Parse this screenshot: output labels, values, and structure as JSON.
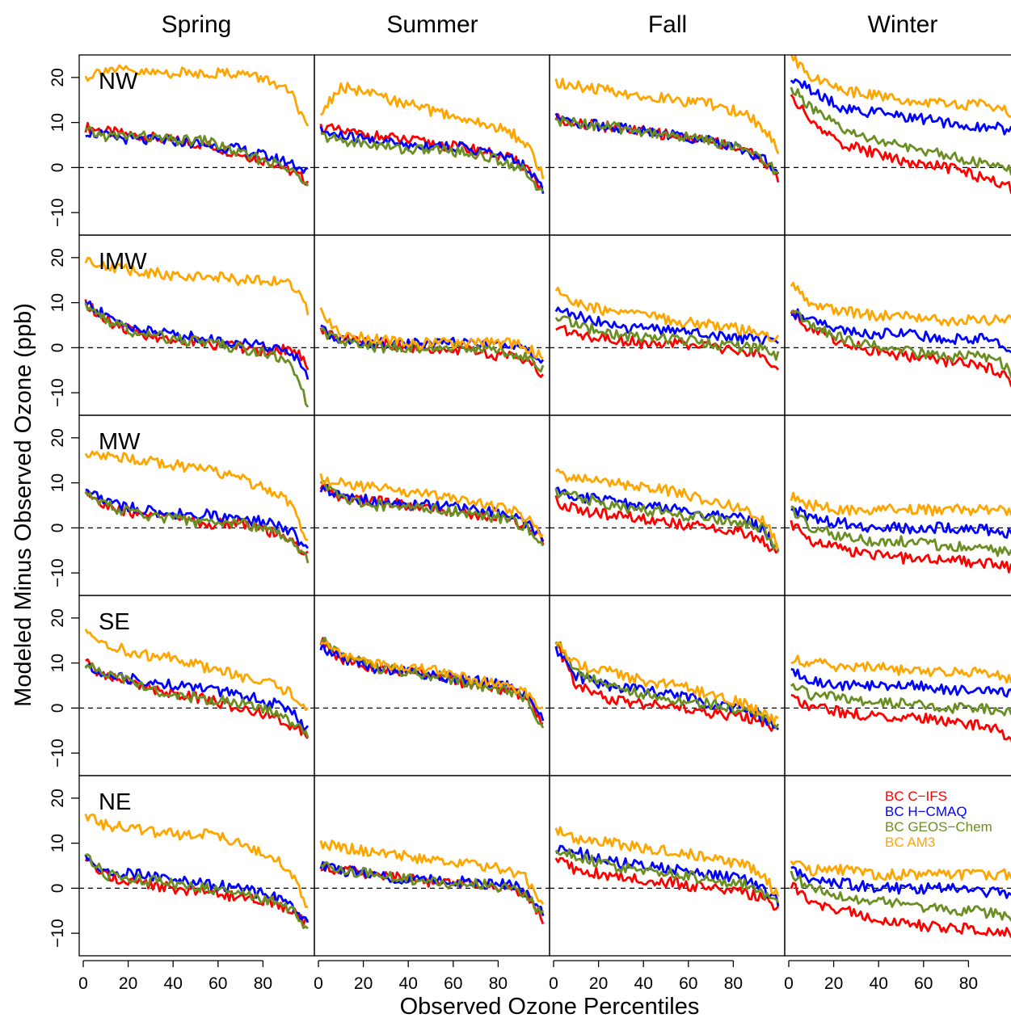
{
  "chart_data": {
    "type": "line",
    "columns": [
      "Spring",
      "Summer",
      "Fall",
      "Winter"
    ],
    "rows": [
      "NW",
      "IMW",
      "MW",
      "SE",
      "NE"
    ],
    "xlabel": "Observed Ozone Percentiles",
    "ylabel": "Modeled Minus Observed Ozone (ppb)",
    "xlim": [
      0,
      100
    ],
    "ylim": [
      -15,
      25
    ],
    "x_ticks": [
      "0",
      "20",
      "40",
      "60",
      "80"
    ],
    "y_ticks": [
      "-10",
      "0",
      "10",
      "20"
    ],
    "reference_line": {
      "y": 0,
      "style": "dashed"
    },
    "legend": {
      "panel": "NE-Winter",
      "placement": "top-right"
    },
    "series": [
      {
        "name": "BC C−IFS",
        "color": "#ff0000"
      },
      {
        "name": "BC H−CMAQ",
        "color": "#0000ff"
      },
      {
        "name": "BC GEOS−Chem",
        "color": "#6b8e23"
      },
      {
        "name": "BC AM3",
        "color": "#ffa500"
      }
    ],
    "anchor_x": [
      1,
      10,
      25,
      40,
      55,
      70,
      85,
      93,
      100
    ],
    "panels": {
      "NW": {
        "Spring": {
          "BC C−IFS": [
            9,
            8,
            7,
            6,
            5,
            3,
            1,
            -1,
            -3
          ],
          "BC H−CMAQ": [
            8,
            7,
            6,
            6,
            5,
            4,
            2,
            1,
            -1
          ],
          "BC GEOS−Chem": [
            8,
            7,
            7,
            6,
            6,
            3,
            1,
            -1,
            -3
          ],
          "BC AM3": [
            20,
            22,
            21,
            21,
            21,
            21,
            19,
            16,
            8
          ]
        },
        "Summer": {
          "BC C−IFS": [
            9,
            8,
            7,
            6,
            5,
            4,
            2,
            0,
            -5
          ],
          "BC H−CMAQ": [
            8,
            7,
            6,
            5,
            5,
            4,
            2,
            0,
            -5
          ],
          "BC GEOS−Chem": [
            7,
            6,
            5,
            4,
            4,
            3,
            1,
            -1,
            -6
          ],
          "BC AM3": [
            12,
            18,
            16,
            14,
            12,
            10,
            8,
            5,
            -2
          ]
        },
        "Fall": {
          "BC C−IFS": [
            11,
            10,
            9,
            8,
            7,
            6,
            4,
            2,
            -3
          ],
          "BC H−CMAQ": [
            11,
            10,
            9,
            8,
            7,
            6,
            4,
            2,
            -1
          ],
          "BC GEOS−Chem": [
            10,
            10,
            9,
            8,
            7,
            6,
            4,
            2,
            -1
          ],
          "BC AM3": [
            19,
            18,
            17,
            16,
            15,
            14,
            12,
            9,
            4
          ]
        },
        "Winter": {
          "BC C−IFS": [
            16,
            10,
            5,
            3,
            1,
            0,
            -2,
            -3,
            -5
          ],
          "BC H−CMAQ": [
            20,
            17,
            13,
            12,
            11,
            10,
            9,
            9,
            8
          ],
          "BC GEOS−Chem": [
            18,
            13,
            8,
            6,
            4,
            3,
            1,
            0,
            -1
          ],
          "BC AM3": [
            25,
            20,
            17,
            16,
            15,
            14,
            14,
            13,
            12
          ]
        }
      },
      "IMW": {
        "Spring": {
          "BC C−IFS": [
            10,
            6,
            3,
            2,
            1,
            0,
            -1,
            0,
            -4
          ],
          "BC H−CMAQ": [
            10,
            7,
            4,
            3,
            2,
            1,
            0,
            -1,
            -6
          ],
          "BC GEOS−Chem": [
            10,
            6,
            3,
            2,
            1,
            0,
            -2,
            -4,
            -13
          ],
          "BC AM3": [
            20,
            18,
            17,
            16,
            16,
            15,
            15,
            14,
            8
          ]
        },
        "Summer": {
          "BC C−IFS": [
            4,
            2,
            1,
            0,
            0,
            -1,
            -2,
            -3,
            -6
          ],
          "BC H−CMAQ": [
            4,
            2,
            1,
            1,
            1,
            1,
            0,
            0,
            -3
          ],
          "BC GEOS−Chem": [
            4,
            1,
            0,
            0,
            0,
            0,
            -1,
            -2,
            -5
          ],
          "BC AM3": [
            8,
            3,
            2,
            1,
            1,
            1,
            1,
            0,
            -2
          ]
        },
        "Fall": {
          "BC C−IFS": [
            5,
            3,
            2,
            1,
            1,
            0,
            -1,
            -2,
            -4
          ],
          "BC H−CMAQ": [
            9,
            7,
            5,
            4,
            4,
            3,
            2,
            2,
            1
          ],
          "BC GEOS−Chem": [
            7,
            5,
            3,
            2,
            2,
            1,
            0,
            0,
            -2
          ],
          "BC AM3": [
            13,
            10,
            8,
            7,
            6,
            5,
            4,
            3,
            2
          ]
        },
        "Winter": {
          "BC C−IFS": [
            8,
            4,
            1,
            -1,
            -2,
            -3,
            -4,
            -5,
            -8
          ],
          "BC H−CMAQ": [
            8,
            6,
            4,
            3,
            3,
            2,
            2,
            1,
            -1
          ],
          "BC GEOS−Chem": [
            9,
            5,
            2,
            0,
            -1,
            -2,
            -2,
            -3,
            -6
          ],
          "BC AM3": [
            14,
            10,
            8,
            7,
            7,
            6,
            6,
            6,
            6
          ]
        }
      },
      "MW": {
        "Spring": {
          "BC C−IFS": [
            8,
            5,
            3,
            2,
            1,
            1,
            -1,
            -3,
            -6
          ],
          "BC H−CMAQ": [
            8,
            6,
            4,
            3,
            3,
            2,
            1,
            -1,
            -5
          ],
          "BC GEOS−Chem": [
            8,
            5,
            3,
            2,
            1,
            1,
            -1,
            -3,
            -7
          ],
          "BC AM3": [
            17,
            16,
            15,
            14,
            13,
            11,
            8,
            5,
            -3
          ]
        },
        "Summer": {
          "BC C−IFS": [
            9,
            7,
            6,
            5,
            4,
            3,
            2,
            0,
            -3
          ],
          "BC H−CMAQ": [
            9,
            7,
            6,
            5,
            5,
            4,
            3,
            1,
            -2
          ],
          "BC GEOS−Chem": [
            10,
            7,
            5,
            5,
            4,
            3,
            2,
            0,
            -3
          ],
          "BC AM3": [
            11,
            10,
            9,
            8,
            7,
            6,
            4,
            2,
            -2
          ]
        },
        "Fall": {
          "BC C−IFS": [
            6,
            4,
            3,
            2,
            1,
            0,
            -1,
            -3,
            -6
          ],
          "BC H−CMAQ": [
            8,
            7,
            6,
            5,
            4,
            3,
            2,
            0,
            -5
          ],
          "BC GEOS−Chem": [
            8,
            7,
            5,
            4,
            3,
            2,
            1,
            0,
            -5
          ],
          "BC AM3": [
            12,
            11,
            10,
            9,
            8,
            6,
            4,
            2,
            -4
          ]
        },
        "Winter": {
          "BC C−IFS": [
            1,
            -3,
            -5,
            -6,
            -7,
            -7,
            -8,
            -8,
            -9
          ],
          "BC H−CMAQ": [
            5,
            2,
            1,
            0,
            0,
            0,
            0,
            -1,
            -1
          ],
          "BC GEOS−Chem": [
            4,
            0,
            -2,
            -3,
            -3,
            -4,
            -4,
            -5,
            -6
          ],
          "BC AM3": [
            7,
            5,
            4,
            4,
            4,
            4,
            4,
            4,
            4
          ]
        }
      },
      "SE": {
        "Spring": {
          "BC C−IFS": [
            10,
            7,
            5,
            3,
            2,
            0,
            -2,
            -4,
            -6
          ],
          "BC H−CMAQ": [
            9,
            8,
            6,
            5,
            4,
            3,
            1,
            -1,
            -5
          ],
          "BC GEOS−Chem": [
            10,
            8,
            5,
            3,
            2,
            1,
            -1,
            -3,
            -6
          ],
          "BC AM3": [
            17,
            14,
            12,
            11,
            9,
            7,
            5,
            3,
            0
          ]
        },
        "Summer": {
          "BC C−IFS": [
            15,
            11,
            9,
            8,
            7,
            5,
            4,
            2,
            -3
          ],
          "BC H−CMAQ": [
            14,
            11,
            9,
            8,
            7,
            6,
            5,
            3,
            -2
          ],
          "BC GEOS−Chem": [
            16,
            12,
            9,
            8,
            7,
            5,
            4,
            2,
            -4
          ],
          "BC AM3": [
            15,
            12,
            10,
            9,
            8,
            6,
            5,
            3,
            -1
          ]
        },
        "Fall": {
          "BC C−IFS": [
            14,
            5,
            2,
            1,
            0,
            -1,
            -2,
            -3,
            -5
          ],
          "BC H−CMAQ": [
            13,
            7,
            5,
            4,
            3,
            1,
            0,
            -2,
            -4
          ],
          "BC GEOS−Chem": [
            15,
            8,
            5,
            3,
            2,
            1,
            -1,
            -2,
            -4
          ],
          "BC AM3": [
            15,
            10,
            8,
            6,
            5,
            3,
            1,
            -1,
            -3
          ]
        },
        "Winter": {
          "BC C−IFS": [
            3,
            0,
            -1,
            -2,
            -2,
            -3,
            -4,
            -5,
            -8
          ],
          "BC H−CMAQ": [
            8,
            6,
            5,
            5,
            5,
            4,
            4,
            4,
            3
          ],
          "BC GEOS−Chem": [
            5,
            3,
            2,
            1,
            1,
            0,
            0,
            -1,
            -1
          ],
          "BC AM3": [
            11,
            10,
            9,
            9,
            8,
            8,
            8,
            7,
            6
          ]
        }
      },
      "NE": {
        "Spring": {
          "BC C−IFS": [
            7,
            3,
            1,
            0,
            -1,
            -2,
            -3,
            -5,
            -8
          ],
          "BC H−CMAQ": [
            7,
            4,
            3,
            2,
            1,
            0,
            -2,
            -4,
            -8
          ],
          "BC GEOS−Chem": [
            7,
            3,
            2,
            1,
            0,
            -1,
            -3,
            -5,
            -9
          ],
          "BC AM3": [
            16,
            14,
            13,
            12,
            12,
            10,
            7,
            3,
            -4
          ]
        },
        "Summer": {
          "BC C−IFS": [
            5,
            4,
            3,
            2,
            1,
            1,
            0,
            -2,
            -7
          ],
          "BC H−CMAQ": [
            5,
            4,
            3,
            2,
            2,
            1,
            1,
            -1,
            -5
          ],
          "BC GEOS−Chem": [
            6,
            4,
            3,
            2,
            1,
            1,
            0,
            -2,
            -6
          ],
          "BC AM3": [
            10,
            9,
            8,
            7,
            6,
            5,
            4,
            2,
            -4
          ]
        },
        "Fall": {
          "BC C−IFS": [
            7,
            4,
            3,
            2,
            1,
            0,
            -1,
            -2,
            -5
          ],
          "BC H−CMAQ": [
            9,
            8,
            6,
            5,
            4,
            3,
            2,
            0,
            -3
          ],
          "BC GEOS−Chem": [
            9,
            7,
            5,
            4,
            3,
            2,
            1,
            -1,
            -4
          ],
          "BC AM3": [
            13,
            11,
            10,
            9,
            8,
            7,
            5,
            3,
            -2
          ]
        },
        "Winter": {
          "BC C−IFS": [
            1,
            -3,
            -5,
            -7,
            -8,
            -9,
            -9,
            -10,
            -10
          ],
          "BC H−CMAQ": [
            4,
            2,
            1,
            0,
            0,
            0,
            -1,
            -1,
            -1
          ],
          "BC GEOS−Chem": [
            3,
            0,
            -2,
            -3,
            -4,
            -5,
            -5,
            -6,
            -6
          ],
          "BC AM3": [
            6,
            4,
            4,
            3,
            3,
            3,
            3,
            3,
            3
          ]
        }
      }
    }
  }
}
